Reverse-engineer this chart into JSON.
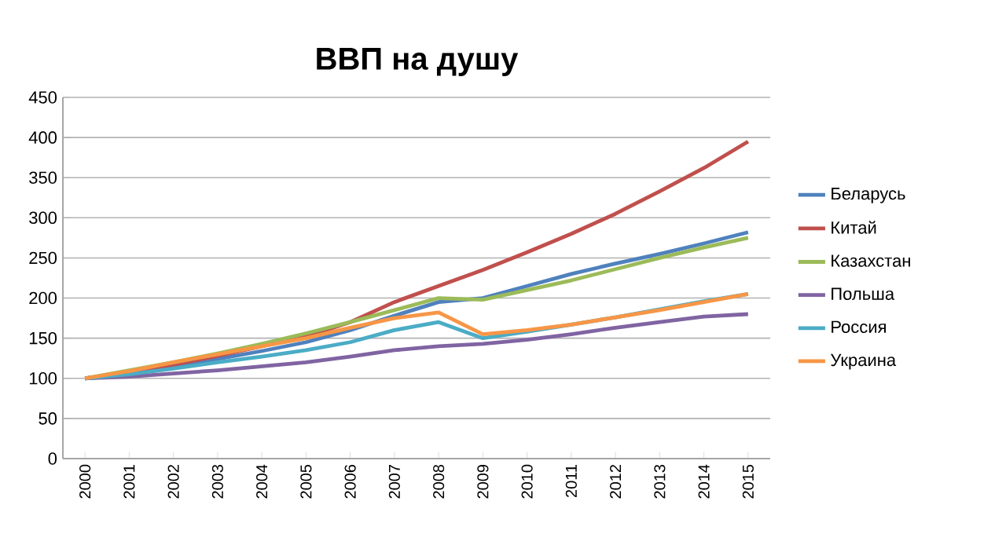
{
  "chart_data": {
    "type": "line",
    "title": "ВВП на душу",
    "categories": [
      "2000",
      "2001",
      "2002",
      "2003",
      "2004",
      "2005",
      "2006",
      "2007",
      "2008",
      "2009",
      "2010",
      "2011",
      "2012",
      "2013",
      "2014",
      "2015"
    ],
    "series": [
      {
        "name": "Беларусь",
        "color": "#4f81bd",
        "values": [
          100,
          106,
          114,
          124,
          134,
          145,
          160,
          178,
          195,
          200,
          215,
          230,
          243,
          255,
          268,
          282
        ]
      },
      {
        "name": "Китай",
        "color": "#c0504d",
        "values": [
          100,
          108,
          117,
          128,
          140,
          152,
          170,
          195,
          215,
          235,
          257,
          280,
          305,
          333,
          362,
          395
        ]
      },
      {
        "name": "Казахстан",
        "color": "#9bbb59",
        "values": [
          100,
          110,
          120,
          131,
          143,
          156,
          170,
          185,
          200,
          198,
          210,
          222,
          236,
          250,
          263,
          275
        ]
      },
      {
        "name": "Польша",
        "color": "#8064a2",
        "values": [
          100,
          102,
          106,
          110,
          115,
          120,
          127,
          135,
          140,
          143,
          148,
          155,
          163,
          170,
          177,
          180
        ]
      },
      {
        "name": "Россия",
        "color": "#4bacc6",
        "values": [
          100,
          105,
          112,
          120,
          127,
          135,
          145,
          160,
          170,
          150,
          158,
          167,
          176,
          186,
          196,
          205
        ]
      },
      {
        "name": "Украина",
        "color": "#f79646",
        "values": [
          100,
          109,
          120,
          130,
          140,
          150,
          163,
          175,
          182,
          155,
          160,
          167,
          176,
          185,
          195,
          205
        ]
      }
    ],
    "ylim": [
      0,
      450
    ],
    "yticks": [
      0,
      50,
      100,
      150,
      200,
      250,
      300,
      350,
      400,
      450
    ],
    "grid": "y",
    "legend": "right"
  }
}
